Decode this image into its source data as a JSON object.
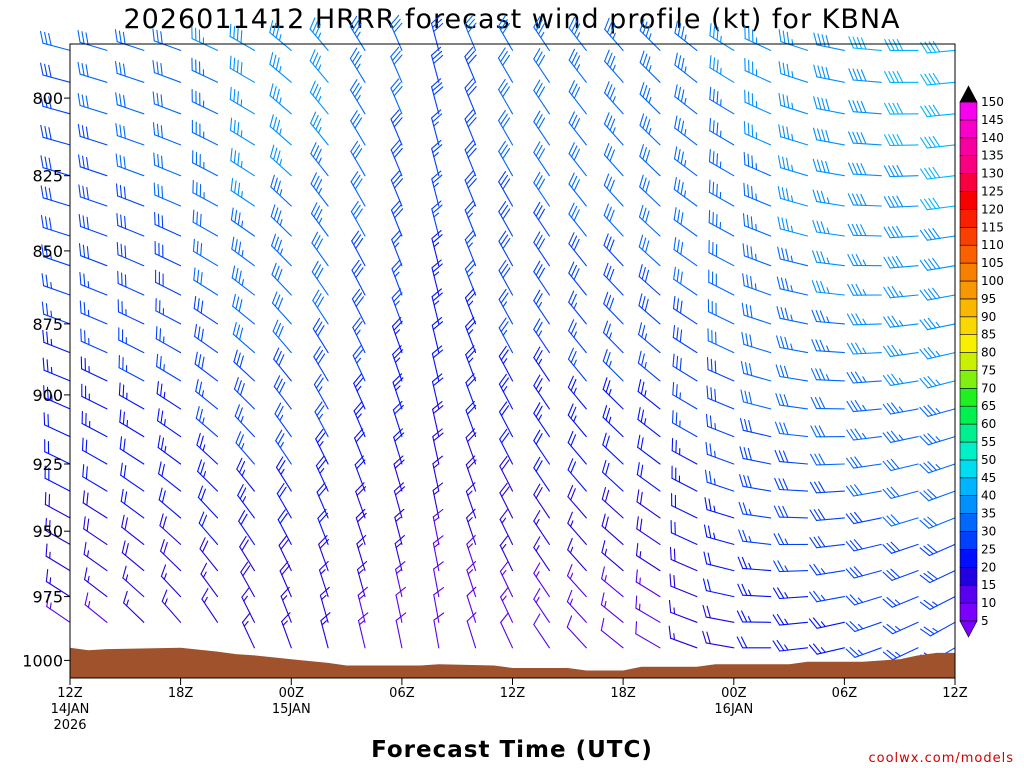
{
  "chart_data": {
    "type": "wind_barbs",
    "title": "2026011412 HRRR forecast wind profile (kt) for KBNA",
    "xlabel": "Forecast Time (UTC)",
    "credit": "coolwx.com/models",
    "x_ticks": [
      {
        "hour": 0,
        "lines": [
          "12Z",
          "14JAN",
          "2026"
        ]
      },
      {
        "hour": 6,
        "lines": [
          "18Z"
        ]
      },
      {
        "hour": 12,
        "lines": [
          "00Z",
          "15JAN"
        ]
      },
      {
        "hour": 18,
        "lines": [
          "06Z"
        ]
      },
      {
        "hour": 24,
        "lines": [
          "12Z"
        ]
      },
      {
        "hour": 30,
        "lines": [
          "18Z"
        ]
      },
      {
        "hour": 36,
        "lines": [
          "00Z",
          "16JAN"
        ]
      },
      {
        "hour": 42,
        "lines": [
          "06Z"
        ]
      },
      {
        "hour": 48,
        "lines": [
          "12Z"
        ]
      }
    ],
    "xlim": [
      0,
      48
    ],
    "y_ticks": [
      800,
      825,
      850,
      875,
      900,
      925,
      950,
      975,
      1000
    ],
    "ylim": [
      1007,
      783
    ],
    "yscale": "log",
    "y_unit": "hPa",
    "barb_pressures": [
      785,
      795,
      805,
      815,
      825,
      835,
      845,
      855,
      865,
      875,
      885,
      895,
      905,
      915,
      925,
      935,
      945,
      955,
      965,
      975,
      985,
      995
    ],
    "forecast_hours": [
      0,
      2,
      4,
      6,
      8,
      10,
      12,
      14,
      16,
      18,
      20,
      22,
      24,
      26,
      28,
      30,
      32,
      34,
      36,
      38,
      40,
      42,
      44,
      46,
      48
    ],
    "profile_keyframes": [
      {
        "hour": 0,
        "upper_dir": 285,
        "upper_speed": 30,
        "lower_dir": 305,
        "lower_speed": 14
      },
      {
        "hour": 6,
        "upper_dir": 290,
        "upper_speed": 32,
        "lower_dir": 320,
        "lower_speed": 15
      },
      {
        "hour": 10,
        "upper_dir": 300,
        "upper_speed": 38,
        "lower_dir": 335,
        "lower_speed": 15
      },
      {
        "hour": 14,
        "upper_dir": 320,
        "upper_speed": 36,
        "lower_dir": 345,
        "lower_speed": 15
      },
      {
        "hour": 20,
        "upper_dir": 345,
        "upper_speed": 28,
        "lower_dir": 350,
        "lower_speed": 10
      },
      {
        "hour": 24,
        "upper_dir": 330,
        "upper_speed": 32,
        "lower_dir": 335,
        "lower_speed": 12
      },
      {
        "hour": 32,
        "upper_dir": 315,
        "upper_speed": 34,
        "lower_dir": 300,
        "lower_speed": 12
      },
      {
        "hour": 38,
        "upper_dir": 295,
        "upper_speed": 36,
        "lower_dir": 270,
        "lower_speed": 22
      },
      {
        "hour": 44,
        "upper_dir": 275,
        "upper_speed": 40,
        "lower_dir": 250,
        "lower_speed": 25
      },
      {
        "hour": 48,
        "upper_dir": 265,
        "upper_speed": 42,
        "lower_dir": 240,
        "lower_speed": 25
      }
    ],
    "terrain_pressure": [
      {
        "hour": 0,
        "p": 995
      },
      {
        "hour": 1,
        "p": 996
      },
      {
        "hour": 2,
        "p": 995.5
      },
      {
        "hour": 6,
        "p": 995
      },
      {
        "hour": 8,
        "p": 996.5
      },
      {
        "hour": 9,
        "p": 997.5
      },
      {
        "hour": 10,
        "p": 998
      },
      {
        "hour": 12,
        "p": 999.5
      },
      {
        "hour": 14,
        "p": 1001
      },
      {
        "hour": 15,
        "p": 1002
      },
      {
        "hour": 19,
        "p": 1002
      },
      {
        "hour": 20,
        "p": 1001.5
      },
      {
        "hour": 23,
        "p": 1002
      },
      {
        "hour": 24,
        "p": 1003
      },
      {
        "hour": 27,
        "p": 1003
      },
      {
        "hour": 28,
        "p": 1004
      },
      {
        "hour": 30,
        "p": 1004
      },
      {
        "hour": 31,
        "p": 1002.5
      },
      {
        "hour": 34,
        "p": 1002.5
      },
      {
        "hour": 35,
        "p": 1001.5
      },
      {
        "hour": 39,
        "p": 1001.5
      },
      {
        "hour": 40,
        "p": 1000.5
      },
      {
        "hour": 43,
        "p": 1000.5
      },
      {
        "hour": 45,
        "p": 999.5
      },
      {
        "hour": 46,
        "p": 998
      },
      {
        "hour": 47,
        "p": 997
      },
      {
        "hour": 48,
        "p": 997
      }
    ],
    "colorbar": {
      "labels": [
        5,
        10,
        15,
        20,
        25,
        30,
        35,
        40,
        45,
        50,
        55,
        60,
        65,
        70,
        75,
        80,
        85,
        90,
        95,
        100,
        105,
        110,
        115,
        120,
        125,
        130,
        135,
        140,
        145,
        150
      ],
      "colors": [
        "#7b00ff",
        "#5a00f0",
        "#2200e0",
        "#0010ff",
        "#0040ff",
        "#0068ff",
        "#0090ff",
        "#00b4ff",
        "#00dcf0",
        "#00f0c8",
        "#00f090",
        "#00f050",
        "#20f020",
        "#80f010",
        "#c8f000",
        "#f8f000",
        "#f8d800",
        "#f8b800",
        "#f89800",
        "#f88000",
        "#f86000",
        "#f84000",
        "#f82000",
        "#f80000",
        "#f80040",
        "#f80080",
        "#f800a0",
        "#f800c8",
        "#f800f0",
        "#000000"
      ]
    },
    "terrain_color": "#a0522d",
    "credit_color": "#cc0000"
  }
}
